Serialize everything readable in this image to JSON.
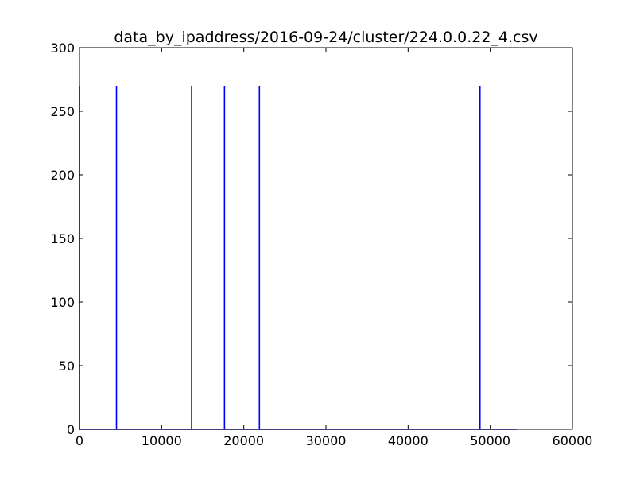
{
  "chart_data": {
    "type": "line",
    "title": "data_by_ipaddress/2016-09-24/cluster/224.0.0.22_4.csv",
    "xlabel": "",
    "ylabel": "",
    "xlim": [
      0,
      60000
    ],
    "ylim": [
      0,
      300
    ],
    "x_ticks": [
      0,
      10000,
      20000,
      30000,
      40000,
      50000,
      60000
    ],
    "x_tick_labels": [
      "0",
      "10000",
      "20000",
      "30000",
      "40000",
      "50000",
      "60000"
    ],
    "y_ticks": [
      0,
      50,
      100,
      150,
      200,
      250,
      300
    ],
    "y_tick_labels": [
      "0",
      "50",
      "100",
      "150",
      "200",
      "250",
      "300"
    ],
    "grid": false,
    "series": [
      {
        "color": "#0000ff",
        "x": [
          0,
          0,
          0,
          4500,
          4500,
          4500,
          13650,
          13650,
          13650,
          17650,
          17650,
          17650,
          21900,
          21900,
          21900,
          48750,
          48750,
          48750,
          53200
        ],
        "y": [
          0,
          270,
          0,
          0,
          270,
          0,
          0,
          270,
          0,
          0,
          270,
          0,
          0,
          270,
          0,
          0,
          270,
          0,
          0
        ]
      }
    ]
  }
}
